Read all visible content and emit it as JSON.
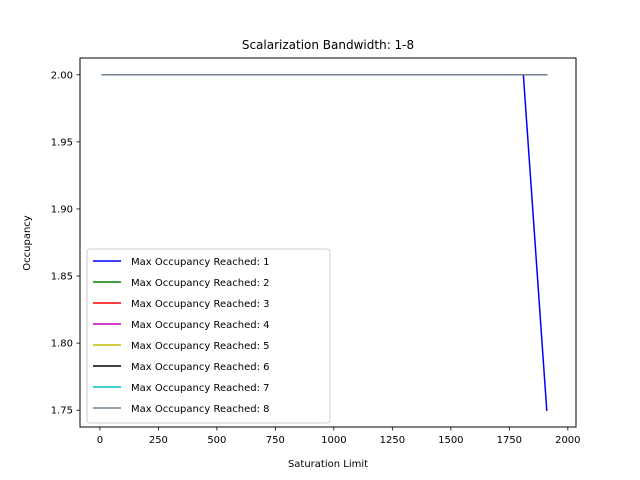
{
  "chart_data": {
    "type": "line",
    "title": "Scalarization Bandwidth: 1-8",
    "xlabel": "Saturation Limit",
    "ylabel": "Occupancy",
    "xlim": [
      -85,
      2035
    ],
    "ylim": [
      1.7375,
      2.0125
    ],
    "xticks": [
      0,
      250,
      500,
      750,
      1000,
      1250,
      1500,
      1750,
      2000
    ],
    "yticks": [
      1.75,
      1.8,
      1.85,
      1.9,
      1.95,
      2.0
    ],
    "ytick_labels": [
      "1.75",
      "1.80",
      "1.85",
      "1.90",
      "1.95",
      "2.00"
    ],
    "grid": false,
    "legend_position": "lower-left",
    "series": [
      {
        "name": "Max Occupancy Reached: 1",
        "color": "#0000ff",
        "x": [
          10,
          1810,
          1910
        ],
        "y": [
          2.0,
          2.0,
          1.75
        ]
      },
      {
        "name": "Max Occupancy Reached: 2",
        "color": "#008000",
        "x": [
          10,
          1910
        ],
        "y": [
          2.0,
          2.0
        ]
      },
      {
        "name": "Max Occupancy Reached: 3",
        "color": "#ff0000",
        "x": [
          10,
          1910
        ],
        "y": [
          2.0,
          2.0
        ]
      },
      {
        "name": "Max Occupancy Reached: 4",
        "color": "#bf00bf",
        "x": [
          10,
          1910
        ],
        "y": [
          2.0,
          2.0
        ]
      },
      {
        "name": "Max Occupancy Reached: 5",
        "color": "#bfbf00",
        "x": [
          10,
          1910
        ],
        "y": [
          2.0,
          2.0
        ]
      },
      {
        "name": "Max Occupancy Reached: 6",
        "color": "#000000",
        "x": [
          10,
          1910
        ],
        "y": [
          2.0,
          2.0
        ]
      },
      {
        "name": "Max Occupancy Reached: 7",
        "color": "#00bfbf",
        "x": [
          10,
          1910
        ],
        "y": [
          2.0,
          2.0
        ]
      },
      {
        "name": "Max Occupancy Reached: 8",
        "color": "#708090",
        "x": [
          10,
          1910
        ],
        "y": [
          2.0,
          2.0
        ]
      }
    ]
  }
}
